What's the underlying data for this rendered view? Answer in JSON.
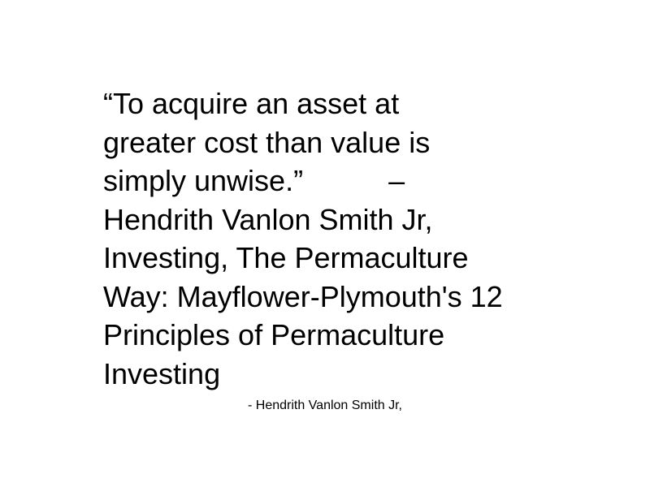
{
  "quote": {
    "lines": [
      "“To acquire an asset at",
      "greater cost than value is",
      "simply unwise.”",
      "Hendrith Vanlon Smith Jr,",
      "Investing, The Permaculture",
      "Way: Mayflower-Plymouth's 12",
      "Principles of Permaculture",
      "Investing"
    ],
    "dash": "–"
  },
  "attribution": {
    "text": "- Hendrith Vanlon Smith Jr,"
  },
  "colors": {
    "background": "#ffffff",
    "text": "#000000"
  }
}
